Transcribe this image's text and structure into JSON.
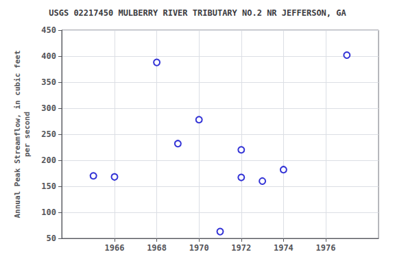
{
  "chart_data": {
    "type": "scatter",
    "title": "USGS 02217450 MULBERRY RIVER TRIBUTARY NO.2 NR JEFFERSON, GA",
    "ylabel": "Annual Peak Streamflow, in cubic feet\nper second",
    "x": [
      1965,
      1966,
      1968,
      1969,
      1970,
      1971,
      1972,
      1972,
      1973,
      1974,
      1977
    ],
    "values": [
      170,
      168,
      388,
      232,
      278,
      63,
      220,
      167,
      160,
      182,
      402
    ],
    "color": "#0000cc",
    "marker": "open_circle",
    "xlim": [
      1963.5,
      1978.5
    ],
    "ylim": [
      50,
      450
    ],
    "xticks": [
      1966,
      1968,
      1970,
      1972,
      1974,
      1976
    ],
    "yticks": [
      50,
      100,
      150,
      200,
      250,
      300,
      350,
      400,
      450
    ],
    "grid": true
  }
}
